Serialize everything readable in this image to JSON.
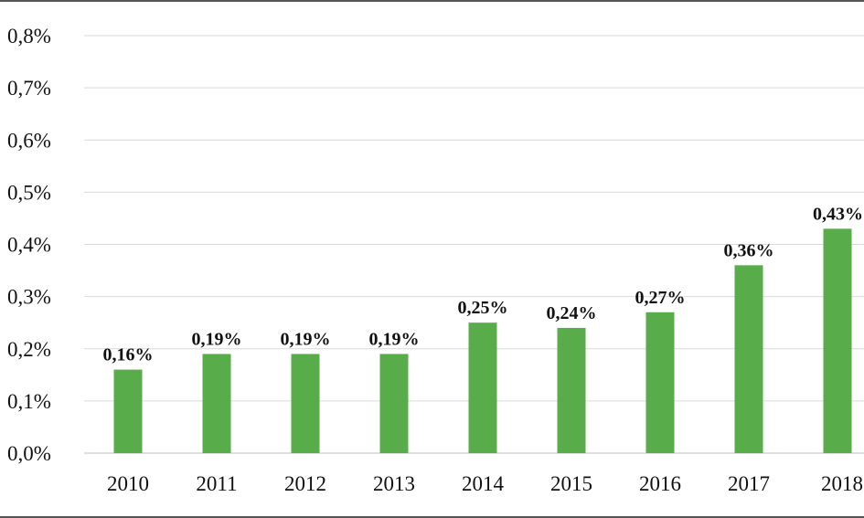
{
  "chart_data": {
    "type": "bar",
    "title": "",
    "xlabel": "",
    "ylabel": "",
    "categories": [
      "2010",
      "2011",
      "2012",
      "2013",
      "2014",
      "2015",
      "2016",
      "2017",
      "2018"
    ],
    "values": [
      0.16,
      0.19,
      0.19,
      0.19,
      0.25,
      0.24,
      0.27,
      0.36,
      0.43
    ],
    "data_labels": [
      "0,16%",
      "0,19%",
      "0,19%",
      "0,19%",
      "0,25%",
      "0,24%",
      "0,27%",
      "0,36%",
      "0,43%"
    ],
    "ylim": [
      0,
      0.8
    ],
    "yticks": [
      0,
      0.1,
      0.2,
      0.3,
      0.4,
      0.5,
      0.6,
      0.7,
      0.8
    ],
    "ytick_labels": [
      "0,0%",
      "0,1%",
      "0,2%",
      "0,3%",
      "0,4%",
      "0,5%",
      "0,6%",
      "0,7%",
      "0,8%"
    ],
    "grid": true,
    "legend": "none",
    "colors": {
      "bar": "#58ad4a"
    }
  }
}
